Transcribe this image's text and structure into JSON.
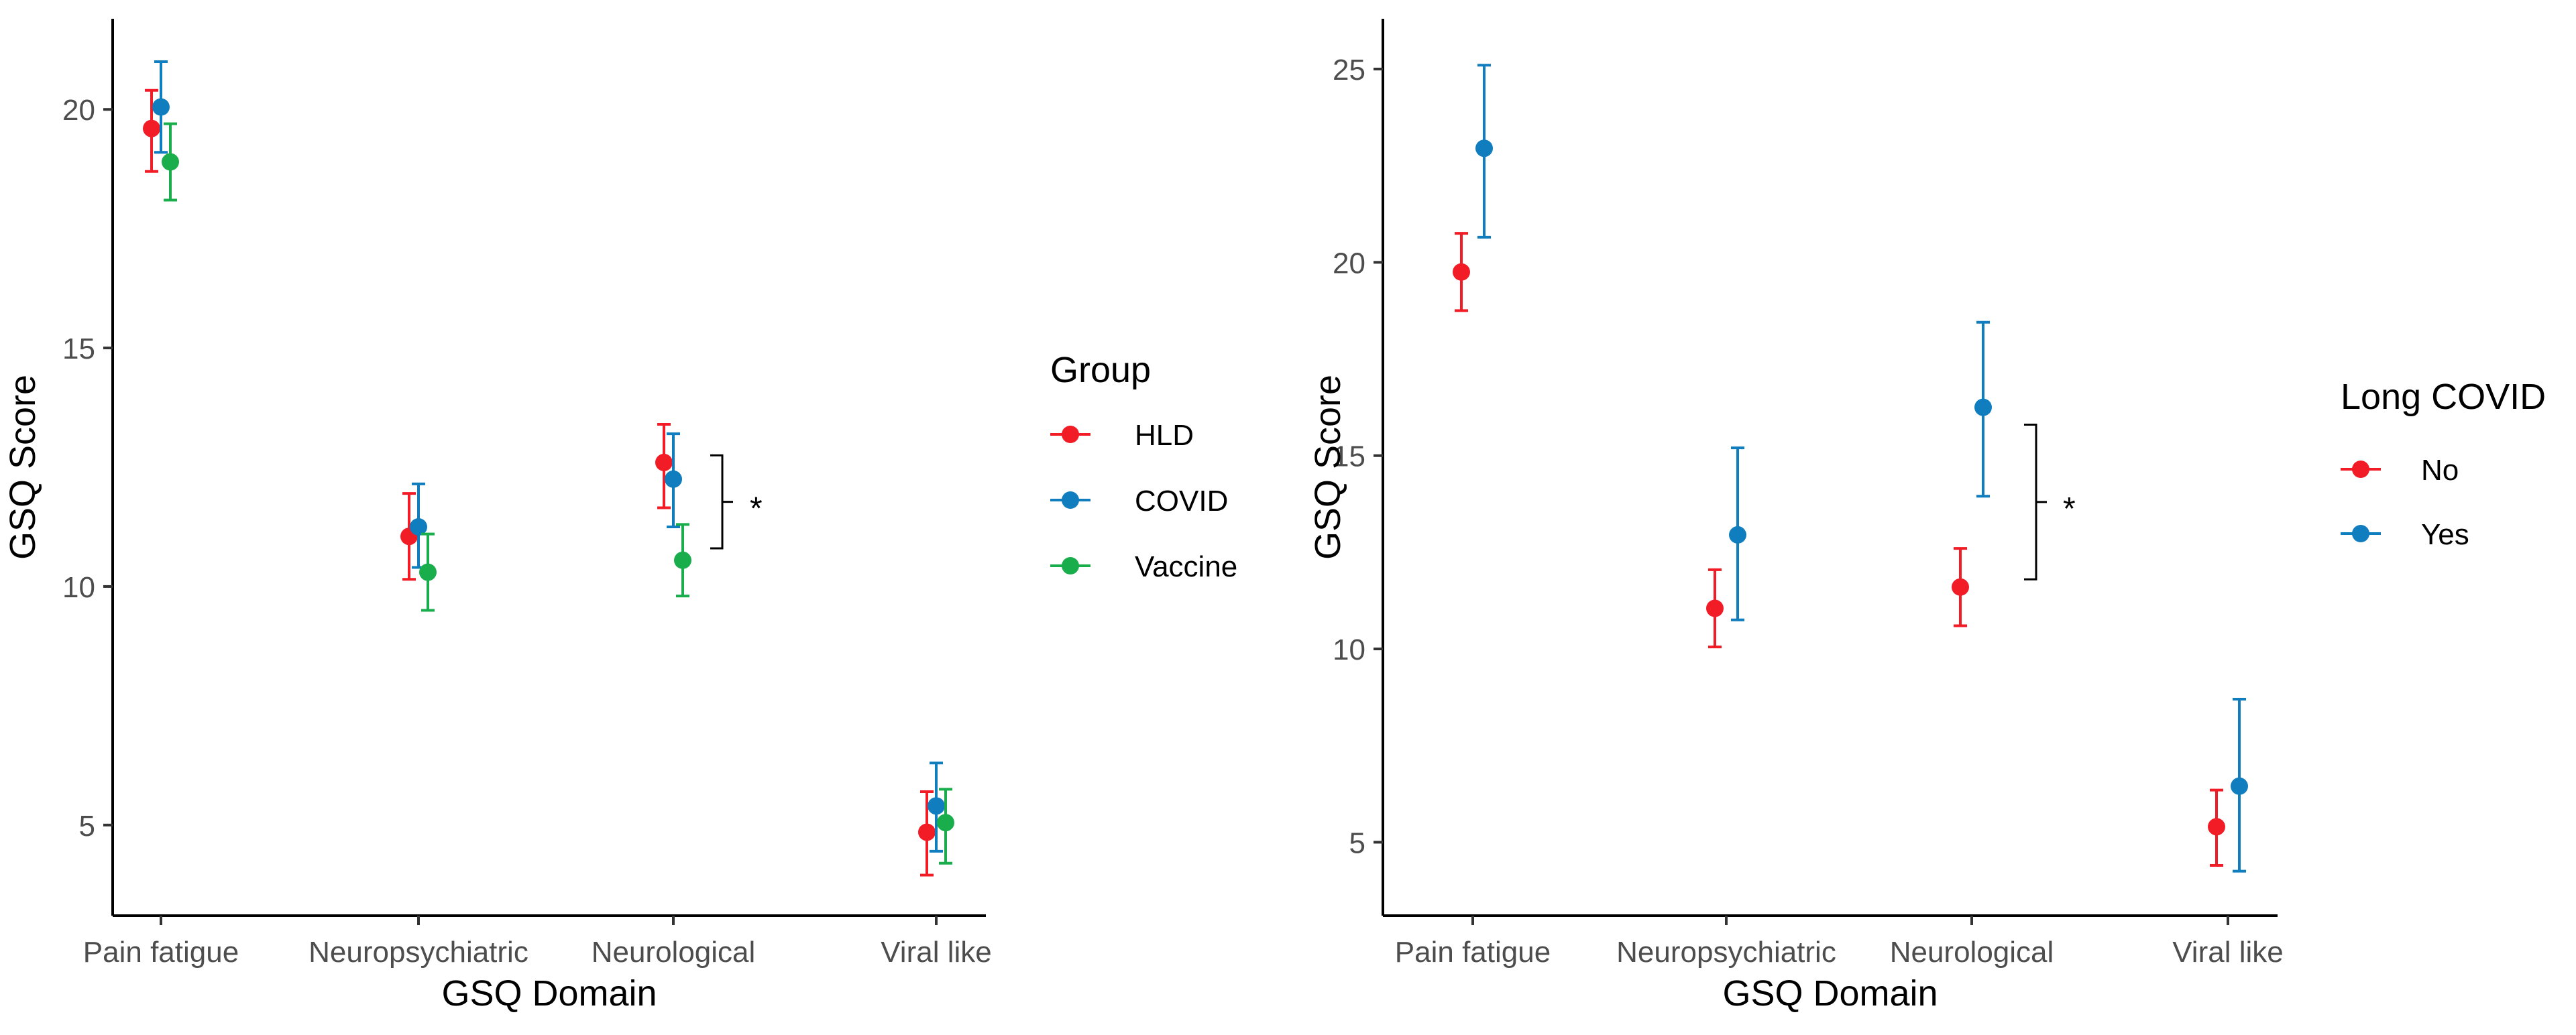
{
  "chart_data": [
    {
      "type": "scatter",
      "xlabel": "GSQ Domain",
      "ylabel": "GSQ Score",
      "categories": [
        "Pain fatigue",
        "Neuropsychiatric",
        "Neurological",
        "Viral like"
      ],
      "ylim": [
        3.1,
        21.9
      ],
      "yticks": [
        5,
        10,
        15,
        20
      ],
      "legend": {
        "title": "Group",
        "placement": "right"
      },
      "series": [
        {
          "name": "HLD",
          "color": "#f21c26",
          "values": [
            19.6,
            11.05,
            12.6,
            4.85
          ],
          "lower": [
            18.7,
            10.15,
            11.65,
            3.95
          ],
          "upper": [
            20.4,
            11.95,
            13.4,
            5.7
          ]
        },
        {
          "name": "COVID",
          "color": "#0f7dbe",
          "values": [
            20.05,
            11.25,
            12.25,
            5.4
          ],
          "lower": [
            19.1,
            10.4,
            11.25,
            4.45
          ],
          "upper": [
            21.0,
            12.15,
            13.2,
            6.3
          ]
        },
        {
          "name": "Vaccine",
          "color": "#19ad4b",
          "values": [
            18.9,
            10.3,
            10.55,
            5.05
          ],
          "lower": [
            18.1,
            9.5,
            9.8,
            4.2
          ],
          "upper": [
            19.7,
            11.1,
            11.3,
            5.75
          ]
        }
      ],
      "annotations": [
        {
          "text": "*",
          "category": "Neurological",
          "from": 10.8,
          "to": 12.75
        }
      ]
    },
    {
      "type": "scatter",
      "xlabel": "GSQ Domain",
      "ylabel": "GSQ Score",
      "categories": [
        "Pain fatigue",
        "Neuropsychiatric",
        "Neurological",
        "Viral like"
      ],
      "ylim": [
        3.1,
        26.3
      ],
      "yticks": [
        5,
        10,
        15,
        20,
        25
      ],
      "legend": {
        "title": "Long COVID",
        "placement": "right"
      },
      "series": [
        {
          "name": "No",
          "color": "#f21c26",
          "values": [
            19.75,
            11.05,
            11.6,
            5.4
          ],
          "lower": [
            18.75,
            10.05,
            10.6,
            4.4
          ],
          "upper": [
            20.75,
            12.05,
            12.6,
            6.35
          ]
        },
        {
          "name": "Yes",
          "color": "#0f7dbe",
          "values": [
            22.95,
            12.95,
            16.25,
            6.45
          ],
          "lower": [
            20.65,
            10.75,
            13.95,
            4.25
          ],
          "upper": [
            25.1,
            15.2,
            18.45,
            8.7
          ]
        }
      ],
      "annotations": [
        {
          "text": "*",
          "category": "Neurological",
          "from": 11.8,
          "to": 15.8
        }
      ]
    }
  ]
}
